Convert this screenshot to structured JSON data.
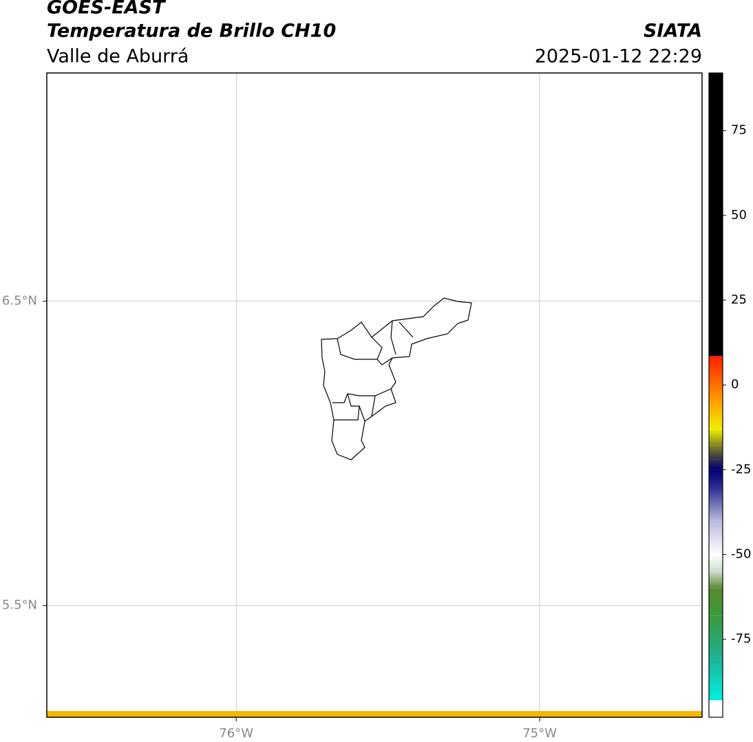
{
  "header": {
    "title": "GOES-EAST",
    "subtitle": "Temperatura de Brillo CH10",
    "region": "Valle de Aburrá",
    "source": "SIATA",
    "datetime": "2025-01-12 22:29"
  },
  "map": {
    "xlim": [
      -76.624,
      -74.465
    ],
    "ylim": [
      5.133,
      7.25
    ],
    "xticks": [
      {
        "value": -76,
        "label": "76°W"
      },
      {
        "value": -75,
        "label": "75°W"
      }
    ],
    "yticks": [
      {
        "value": 6.5,
        "label": "6.5°N"
      },
      {
        "value": 5.5,
        "label": "5.5°N"
      }
    ],
    "grid": true
  },
  "colorbar": {
    "lim": [
      -98,
      92
    ],
    "ticks": [
      -75,
      -50,
      -25,
      0,
      25,
      50,
      75
    ],
    "colors": [
      {
        "value": -98,
        "color": "#ffffff"
      },
      {
        "value": -93.1,
        "color": "#ffffff"
      },
      {
        "value": -93,
        "color": "#00f0e0"
      },
      {
        "value": -80,
        "color": "#20b090"
      },
      {
        "value": -68,
        "color": "#3a9a3a"
      },
      {
        "value": -60,
        "color": "#5a8a30"
      },
      {
        "value": -55,
        "color": "#d0dcd0"
      },
      {
        "value": -50,
        "color": "#ffffff"
      },
      {
        "value": -40,
        "color": "#b8b8dc"
      },
      {
        "value": -30,
        "color": "#2a2a90"
      },
      {
        "value": -25,
        "color": "#000070"
      },
      {
        "value": -22,
        "color": "#303050"
      },
      {
        "value": -18,
        "color": "#808020"
      },
      {
        "value": -13,
        "color": "#f0f000"
      },
      {
        "value": -5,
        "color": "#ffa000"
      },
      {
        "value": 8.4,
        "color": "#ff2000"
      },
      {
        "value": 8.6,
        "color": "#000000"
      },
      {
        "value": 92,
        "color": "#000000"
      }
    ]
  }
}
